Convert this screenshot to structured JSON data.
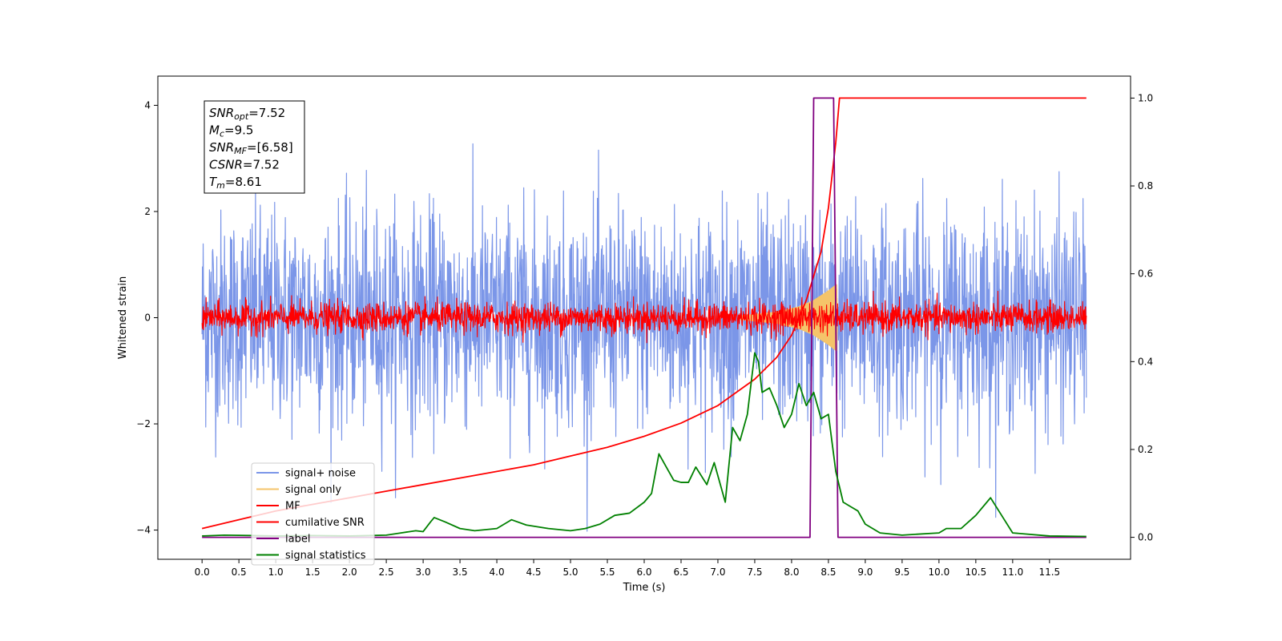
{
  "chart_data": {
    "type": "line",
    "xlabel": "Time (s)",
    "ylabel": "Whitened strain",
    "xlim": [
      -0.6,
      12.6
    ],
    "ylim": [
      -4.55,
      4.55
    ],
    "y2lim": [
      -0.05,
      1.05
    ],
    "x_ticks": [
      0.0,
      0.5,
      1.0,
      1.5,
      2.0,
      2.5,
      3.0,
      3.5,
      4.0,
      4.5,
      5.0,
      5.5,
      6.0,
      6.5,
      7.0,
      7.5,
      8.0,
      8.5,
      9.0,
      9.5,
      10.0,
      10.5,
      11.0,
      11.5
    ],
    "x_tick_labels": [
      "0.0",
      "0.5",
      "1.0",
      "1.5",
      "2.0",
      "2.5",
      "3.0",
      "3.5",
      "4.0",
      "4.5",
      "5.0",
      "5.5",
      "6.0",
      "6.5",
      "7.0",
      "7.5",
      "8.0",
      "8.5",
      "9.0",
      "9.5",
      "10.0",
      "10.5",
      "11.0",
      "11.5"
    ],
    "y_ticks": [
      4,
      2,
      0,
      -2,
      -4
    ],
    "y_tick_labels": [
      "4",
      "2",
      "0",
      "−2",
      "−4"
    ],
    "y2_ticks": [
      1.0,
      0.8,
      0.6,
      0.4,
      0.2,
      0.0
    ],
    "y2_tick_labels": [
      "1.0",
      "0.8",
      "0.6",
      "0.4",
      "0.2",
      "0.0"
    ],
    "legend_position": "lower-left",
    "series": [
      {
        "name": "signal+ noise",
        "axis": "left",
        "color": "#7b96e8",
        "kind": "noise",
        "x_start": 0.0,
        "x_end": 12.0,
        "sigma": 1.0,
        "range": [
          -4.1,
          4.1
        ]
      },
      {
        "name": "signal only",
        "axis": "left",
        "color": "#f5c46a",
        "kind": "chirp",
        "envelope": [
          [
            7.3,
            0.03
          ],
          [
            7.8,
            0.1
          ],
          [
            8.1,
            0.2
          ],
          [
            8.3,
            0.32
          ],
          [
            8.5,
            0.5
          ],
          [
            8.61,
            0.62
          ],
          [
            8.62,
            0.0
          ]
        ]
      },
      {
        "name": "MF",
        "axis": "left",
        "color": "#ff0000",
        "kind": "noise",
        "x_start": 0.0,
        "x_end": 12.0,
        "sigma": 0.14,
        "range": [
          -0.5,
          0.5
        ]
      },
      {
        "name": "cumilative SNR",
        "axis": "right",
        "color": "#ff0000",
        "points": [
          [
            0.0,
            0.02
          ],
          [
            0.5,
            0.04
          ],
          [
            1.0,
            0.06
          ],
          [
            1.5,
            0.075
          ],
          [
            2.0,
            0.09
          ],
          [
            2.5,
            0.105
          ],
          [
            3.0,
            0.12
          ],
          [
            3.5,
            0.135
          ],
          [
            4.0,
            0.15
          ],
          [
            4.5,
            0.165
          ],
          [
            5.0,
            0.185
          ],
          [
            5.5,
            0.205
          ],
          [
            6.0,
            0.23
          ],
          [
            6.5,
            0.26
          ],
          [
            7.0,
            0.3
          ],
          [
            7.5,
            0.36
          ],
          [
            7.8,
            0.41
          ],
          [
            8.0,
            0.46
          ],
          [
            8.2,
            0.54
          ],
          [
            8.4,
            0.65
          ],
          [
            8.5,
            0.75
          ],
          [
            8.6,
            0.9
          ],
          [
            8.65,
            1.0
          ],
          [
            12.0,
            1.0
          ]
        ]
      },
      {
        "name": "label",
        "axis": "right",
        "color": "#800080",
        "points": [
          [
            0.0,
            0.0
          ],
          [
            8.25,
            0.0
          ],
          [
            8.3,
            1.0
          ],
          [
            8.57,
            1.0
          ],
          [
            8.63,
            0.0
          ],
          [
            12.0,
            0.0
          ]
        ]
      },
      {
        "name": "signal statistics",
        "axis": "right",
        "color": "#008000",
        "points": [
          [
            0.0,
            0.003
          ],
          [
            0.3,
            0.005
          ],
          [
            0.7,
            0.004
          ],
          [
            1.0,
            0.003
          ],
          [
            1.5,
            0.004
          ],
          [
            2.0,
            0.003
          ],
          [
            2.5,
            0.005
          ],
          [
            2.7,
            0.01
          ],
          [
            2.9,
            0.015
          ],
          [
            3.0,
            0.013
          ],
          [
            3.1,
            0.035
          ],
          [
            3.15,
            0.045
          ],
          [
            3.3,
            0.035
          ],
          [
            3.5,
            0.02
          ],
          [
            3.7,
            0.015
          ],
          [
            4.0,
            0.02
          ],
          [
            4.2,
            0.04
          ],
          [
            4.4,
            0.028
          ],
          [
            4.7,
            0.02
          ],
          [
            5.0,
            0.015
          ],
          [
            5.2,
            0.02
          ],
          [
            5.4,
            0.03
          ],
          [
            5.6,
            0.05
          ],
          [
            5.8,
            0.055
          ],
          [
            6.0,
            0.08
          ],
          [
            6.1,
            0.1
          ],
          [
            6.2,
            0.19
          ],
          [
            6.3,
            0.16
          ],
          [
            6.4,
            0.13
          ],
          [
            6.5,
            0.125
          ],
          [
            6.6,
            0.125
          ],
          [
            6.7,
            0.16
          ],
          [
            6.85,
            0.12
          ],
          [
            6.95,
            0.17
          ],
          [
            7.1,
            0.08
          ],
          [
            7.2,
            0.25
          ],
          [
            7.3,
            0.22
          ],
          [
            7.4,
            0.28
          ],
          [
            7.5,
            0.42
          ],
          [
            7.55,
            0.4
          ],
          [
            7.6,
            0.33
          ],
          [
            7.7,
            0.34
          ],
          [
            7.8,
            0.3
          ],
          [
            7.9,
            0.25
          ],
          [
            8.0,
            0.28
          ],
          [
            8.1,
            0.35
          ],
          [
            8.2,
            0.3
          ],
          [
            8.3,
            0.33
          ],
          [
            8.4,
            0.27
          ],
          [
            8.5,
            0.28
          ],
          [
            8.6,
            0.15
          ],
          [
            8.7,
            0.08
          ],
          [
            8.8,
            0.07
          ],
          [
            8.9,
            0.06
          ],
          [
            9.0,
            0.03
          ],
          [
            9.2,
            0.01
          ],
          [
            9.5,
            0.005
          ],
          [
            10.0,
            0.01
          ],
          [
            10.1,
            0.02
          ],
          [
            10.3,
            0.02
          ],
          [
            10.5,
            0.05
          ],
          [
            10.7,
            0.09
          ],
          [
            10.85,
            0.05
          ],
          [
            11.0,
            0.01
          ],
          [
            11.5,
            0.003
          ],
          [
            12.0,
            0.002
          ]
        ]
      }
    ],
    "annotation": [
      {
        "base": "SNR",
        "sub": "opt",
        "value": "=7.52"
      },
      {
        "base": "M",
        "sub": "c",
        "value": "=9.5"
      },
      {
        "base": "SNR",
        "sub": "MF",
        "value": "=[6.58]"
      },
      {
        "base": "CSNR",
        "sub": "",
        "value": "=7.52"
      },
      {
        "base": "T",
        "sub": "m",
        "value": "=8.61"
      }
    ]
  }
}
